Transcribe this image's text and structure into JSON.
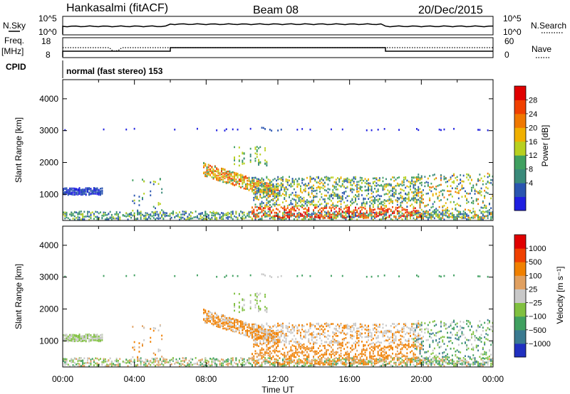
{
  "header": {
    "station": "Hankasalmi (fitACF)",
    "beam": "Beam 08",
    "date": "20/Dec/2015"
  },
  "top_panels": {
    "nsky_label": "N.Sky",
    "nsky_ticks": [
      "10^5",
      "10^0"
    ],
    "nsearch_label": "N.Search",
    "nsearch_ticks": [
      "10^5",
      "10^0"
    ],
    "freq_label_line1": "Freq.",
    "freq_label_line2": "[MHz]",
    "freq_ticks": [
      "18",
      "8"
    ],
    "nave_label": "Nave",
    "nave_ticks": [
      "60",
      "0"
    ],
    "cpid_label": "CPID",
    "cpid_text": "normal (fast stereo) 153"
  },
  "colors": {
    "power": [
      "#1f1fe0",
      "#2a55b0",
      "#3a8a7a",
      "#40a060",
      "#b8d020",
      "#f0b000",
      "#f07800",
      "#f04000",
      "#e00000"
    ],
    "velocity": [
      "#e00000",
      "#f04000",
      "#f08000",
      "#e0a060",
      "#c8c8c8",
      "#80c040",
      "#40a060",
      "#3a7a90",
      "#2030c0"
    ]
  },
  "chart_data": [
    {
      "type": "heatmap",
      "name": "power",
      "ylabel": "Slant Range [km]",
      "yticks": [
        "4000",
        "3000",
        "2000",
        "1000"
      ],
      "ytick_values": [
        4000,
        3000,
        2000,
        1000
      ],
      "ylim": [
        180,
        4600
      ],
      "xlim_hours": [
        0,
        24
      ],
      "xtick_labels": [
        "00:00",
        "04:00",
        "08:00",
        "12:00",
        "16:00",
        "20:00",
        "00:00"
      ],
      "colorbar_label": "Power [dB]",
      "colorbar_ticks": [
        "28",
        "24",
        "20",
        "16",
        "12",
        "8",
        "4"
      ]
    },
    {
      "type": "heatmap",
      "name": "velocity",
      "ylabel": "Slant Range [km]",
      "yticks": [
        "4000",
        "3000",
        "2000",
        "1000"
      ],
      "ytick_values": [
        4000,
        3000,
        2000,
        1000
      ],
      "ylim": [
        180,
        4600
      ],
      "xlim_hours": [
        0,
        24
      ],
      "xtick_labels": [
        "00:00",
        "04:00",
        "08:00",
        "12:00",
        "16:00",
        "20:00",
        "00:00"
      ],
      "xlabel": "Time UT",
      "colorbar_label": "Velocity [m s⁻¹]",
      "colorbar_ticks": [
        "1000",
        "500",
        "100",
        "25",
        "−25",
        "−100",
        "−500",
        "−1000"
      ]
    }
  ]
}
